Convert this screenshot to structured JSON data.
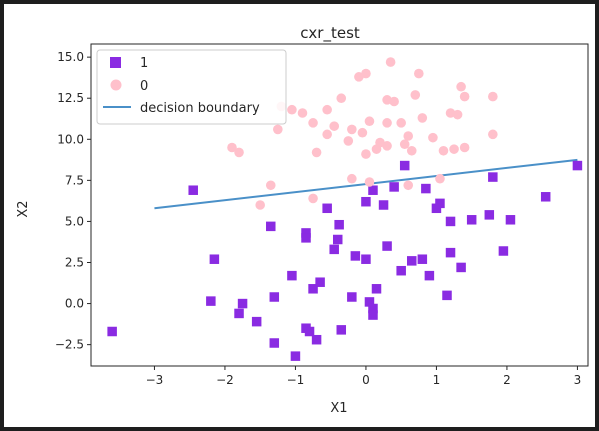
{
  "chart_data": {
    "type": "scatter",
    "title": "cxr_test",
    "xlabel": "X1",
    "ylabel": "X2",
    "xlim": [
      -3.9,
      3.15
    ],
    "ylim": [
      -3.8,
      15.8
    ],
    "xticks": [
      -3,
      -2,
      -1,
      0,
      1,
      2,
      3
    ],
    "yticks": [
      -2.5,
      0.0,
      2.5,
      5.0,
      7.5,
      10.0,
      12.5,
      15.0
    ],
    "xtick_labels": [
      "−3",
      "−2",
      "−1",
      "0",
      "1",
      "2",
      "3"
    ],
    "ytick_labels": [
      "−2.5",
      "0.0",
      "2.5",
      "5.0",
      "7.5",
      "10.0",
      "12.5",
      "15.0"
    ],
    "grid": false,
    "legend_position": "upper-left",
    "series": [
      {
        "name": "1",
        "marker": "square",
        "color": "#8a2be2",
        "points": [
          [
            -3.6,
            -1.7
          ],
          [
            -2.45,
            6.9
          ],
          [
            -2.15,
            2.7
          ],
          [
            -2.2,
            0.15
          ],
          [
            -1.75,
            0.0
          ],
          [
            -1.8,
            -0.6
          ],
          [
            -1.55,
            -1.1
          ],
          [
            -1.35,
            4.7
          ],
          [
            -1.3,
            0.4
          ],
          [
            -1.3,
            -2.4
          ],
          [
            -1.05,
            1.7
          ],
          [
            -1.0,
            -3.2
          ],
          [
            -0.85,
            4.3
          ],
          [
            -0.85,
            4.0
          ],
          [
            -0.8,
            -1.7
          ],
          [
            -0.85,
            -1.5
          ],
          [
            -0.75,
            0.9
          ],
          [
            -0.7,
            -2.2
          ],
          [
            -0.65,
            1.3
          ],
          [
            -0.55,
            5.8
          ],
          [
            -0.45,
            3.3
          ],
          [
            -0.4,
            3.9
          ],
          [
            -0.38,
            4.8
          ],
          [
            -0.35,
            -1.6
          ],
          [
            -0.2,
            0.4
          ],
          [
            -0.15,
            2.9
          ],
          [
            0.0,
            2.7
          ],
          [
            0.0,
            6.2
          ],
          [
            0.05,
            0.1
          ],
          [
            0.1,
            6.9
          ],
          [
            0.1,
            -0.3
          ],
          [
            0.1,
            -0.7
          ],
          [
            0.15,
            0.9
          ],
          [
            0.25,
            6.0
          ],
          [
            0.3,
            3.5
          ],
          [
            0.4,
            7.1
          ],
          [
            0.5,
            2.0
          ],
          [
            0.55,
            8.4
          ],
          [
            0.65,
            2.6
          ],
          [
            0.8,
            2.7
          ],
          [
            0.85,
            7.0
          ],
          [
            0.9,
            1.7
          ],
          [
            1.0,
            5.8
          ],
          [
            1.05,
            6.1
          ],
          [
            1.15,
            0.5
          ],
          [
            1.2,
            3.1
          ],
          [
            1.2,
            5.0
          ],
          [
            1.35,
            2.2
          ],
          [
            1.5,
            5.1
          ],
          [
            1.75,
            5.4
          ],
          [
            1.8,
            7.7
          ],
          [
            1.95,
            3.2
          ],
          [
            2.05,
            5.1
          ],
          [
            2.55,
            6.5
          ],
          [
            3.0,
            8.4
          ]
        ]
      },
      {
        "name": "0",
        "marker": "circle",
        "color": "#ffc0cb",
        "points": [
          [
            -1.9,
            9.5
          ],
          [
            -1.8,
            9.2
          ],
          [
            -1.5,
            6.0
          ],
          [
            -1.35,
            7.2
          ],
          [
            -1.25,
            10.6
          ],
          [
            -1.2,
            12.0
          ],
          [
            -1.05,
            11.8
          ],
          [
            -0.9,
            11.6
          ],
          [
            -0.75,
            11.0
          ],
          [
            -0.7,
            9.2
          ],
          [
            -0.55,
            11.8
          ],
          [
            -0.55,
            10.3
          ],
          [
            -0.45,
            10.8
          ],
          [
            -0.35,
            12.5
          ],
          [
            -0.25,
            9.9
          ],
          [
            -0.2,
            10.6
          ],
          [
            -0.1,
            13.8
          ],
          [
            -0.05,
            10.4
          ],
          [
            0.0,
            14.0
          ],
          [
            0.0,
            9.1
          ],
          [
            0.05,
            11.1
          ],
          [
            0.15,
            9.4
          ],
          [
            0.2,
            9.8
          ],
          [
            0.3,
            9.6
          ],
          [
            0.3,
            12.4
          ],
          [
            0.3,
            11.0
          ],
          [
            0.35,
            14.7
          ],
          [
            0.4,
            12.3
          ],
          [
            0.5,
            11.0
          ],
          [
            0.55,
            9.7
          ],
          [
            0.6,
            10.2
          ],
          [
            0.65,
            9.3
          ],
          [
            0.7,
            12.7
          ],
          [
            0.75,
            14.0
          ],
          [
            0.8,
            11.3
          ],
          [
            0.95,
            10.1
          ],
          [
            1.05,
            7.6
          ],
          [
            1.1,
            9.3
          ],
          [
            1.2,
            11.6
          ],
          [
            1.25,
            9.4
          ],
          [
            1.3,
            11.5
          ],
          [
            1.35,
            13.2
          ],
          [
            1.4,
            12.6
          ],
          [
            1.4,
            9.5
          ],
          [
            1.8,
            12.6
          ],
          [
            1.8,
            10.3
          ],
          [
            0.6,
            7.2
          ],
          [
            0.05,
            7.4
          ],
          [
            -0.75,
            6.4
          ],
          [
            -0.2,
            7.6
          ]
        ]
      },
      {
        "name": "decision boundary",
        "type": "line",
        "color": "#4a90c8",
        "points": [
          [
            -3.0,
            5.8
          ],
          [
            3.0,
            8.75
          ]
        ]
      }
    ]
  }
}
